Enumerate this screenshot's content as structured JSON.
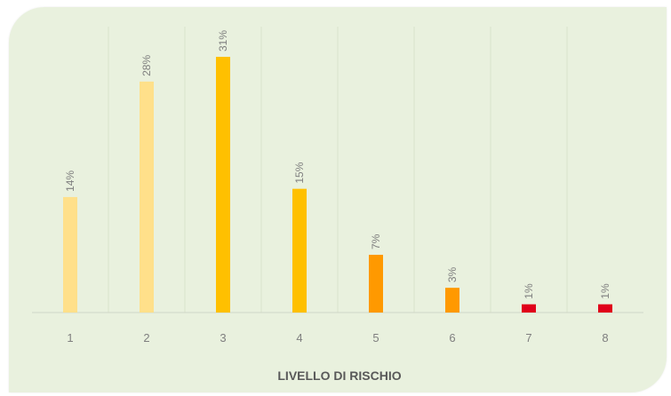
{
  "chart_data": {
    "type": "bar",
    "title": "",
    "xlabel": "LIVELLO DI RISCHIO",
    "ylabel": "",
    "categories": [
      "1",
      "2",
      "3",
      "4",
      "5",
      "6",
      "7",
      "8"
    ],
    "values": [
      14,
      28,
      31,
      15,
      7,
      3,
      1,
      1
    ],
    "data_labels": [
      "14%",
      "28%",
      "31%",
      "15%",
      "7%",
      "3%",
      "1%",
      "1%"
    ],
    "ylim": [
      0,
      31
    ],
    "grid": "vertical",
    "legend": "none",
    "colors": [
      "#ffe08a",
      "#ffe08a",
      "#ffc000",
      "#ffc000",
      "#ff9900",
      "#ff9900",
      "#e0001a",
      "#e0001a"
    ],
    "background_color": "#e9f1de"
  }
}
